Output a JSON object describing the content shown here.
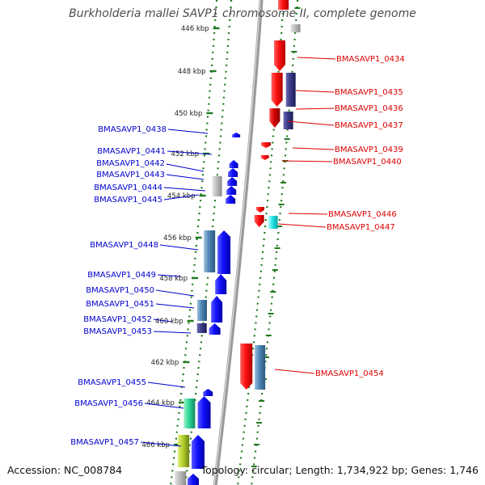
{
  "title": "Burkholderia mallei SAVP1 chromosome II, complete genome",
  "footer": {
    "accession": "Accession: NC_008784",
    "summary": "Topology: circular; Length: 1,734,922 bp; Genes: 1,746"
  },
  "colors": {
    "reverse_label": "#0000cc",
    "forward_label": "#dd0000",
    "backbone": "#9a9a9a",
    "tick": "#1f7a1f"
  },
  "ticks": [
    {
      "label": "446 kbp"
    },
    {
      "label": "448 kbp"
    },
    {
      "label": "450 kbp"
    },
    {
      "label": "452 kbp"
    },
    {
      "label": "454 kbp"
    },
    {
      "label": "456 kbp"
    },
    {
      "label": "458 kbp"
    },
    {
      "label": "460 kbp"
    },
    {
      "label": "462 kbp"
    },
    {
      "label": "464 kbp"
    },
    {
      "label": "466 kbp"
    }
  ],
  "forward_genes": [
    {
      "id": "BMASAVP1_0434"
    },
    {
      "id": "BMASAVP1_0435"
    },
    {
      "id": "BMASAVP1_0436"
    },
    {
      "id": "BMASAVP1_0437"
    },
    {
      "id": "BMASAVP1_0439"
    },
    {
      "id": "BMASAVP1_0440"
    },
    {
      "id": "BMASAVP1_0446"
    },
    {
      "id": "BMASAVP1_0447"
    },
    {
      "id": "BMASAVP1_0454"
    }
  ],
  "reverse_genes": [
    {
      "id": "BMASAVP1_0438"
    },
    {
      "id": "BMASAVP1_0441"
    },
    {
      "id": "BMASAVP1_0442"
    },
    {
      "id": "BMASAVP1_0443"
    },
    {
      "id": "BMASAVP1_0444"
    },
    {
      "id": "BMASAVP1_0445"
    },
    {
      "id": "BMASAVP1_0448"
    },
    {
      "id": "BMASAVP1_0449"
    },
    {
      "id": "BMASAVP1_0450"
    },
    {
      "id": "BMASAVP1_0451"
    },
    {
      "id": "BMASAVP1_0452"
    },
    {
      "id": "BMASAVP1_0453"
    },
    {
      "id": "BMASAVP1_0455"
    },
    {
      "id": "BMASAVP1_0456"
    },
    {
      "id": "BMASAVP1_0457"
    }
  ]
}
